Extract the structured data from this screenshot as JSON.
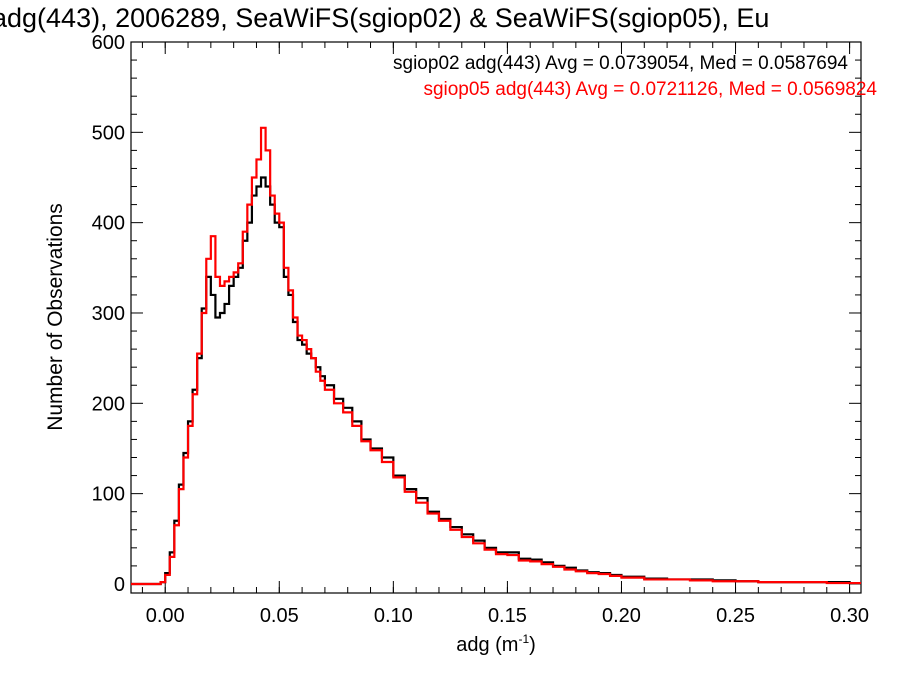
{
  "chart_data": {
    "type": "line",
    "title": "adg(443), 2006289, SeaWiFS(sgiop02) & SeaWiFS(sgiop05), Eu",
    "xlabel": "adg (m",
    "xlabel_sup": "-1",
    "xlabel_end": ")",
    "ylabel": "Number of Observations",
    "xlim": [
      -0.015,
      0.305
    ],
    "ylim": [
      -10,
      600
    ],
    "xticks": [
      0.0,
      0.05,
      0.1,
      0.15,
      0.2,
      0.25,
      0.3
    ],
    "xtick_labels": [
      "0.00",
      "0.05",
      "0.10",
      "0.15",
      "0.20",
      "0.25",
      "0.30"
    ],
    "yticks": [
      0,
      100,
      200,
      300,
      400,
      500,
      600
    ],
    "ytick_labels": [
      "0",
      "100",
      "200",
      "300",
      "400",
      "500",
      "600"
    ],
    "grid": false,
    "legend_position": "top-right",
    "x": [
      -0.015,
      -0.004,
      -0.002,
      0.0,
      0.002,
      0.004,
      0.006,
      0.008,
      0.01,
      0.012,
      0.014,
      0.016,
      0.018,
      0.02,
      0.022,
      0.024,
      0.026,
      0.028,
      0.03,
      0.032,
      0.034,
      0.036,
      0.038,
      0.04,
      0.042,
      0.044,
      0.046,
      0.048,
      0.05,
      0.052,
      0.054,
      0.056,
      0.058,
      0.06,
      0.062,
      0.064,
      0.066,
      0.068,
      0.07,
      0.074,
      0.078,
      0.082,
      0.086,
      0.09,
      0.095,
      0.1,
      0.105,
      0.11,
      0.115,
      0.12,
      0.125,
      0.13,
      0.135,
      0.14,
      0.145,
      0.15,
      0.155,
      0.16,
      0.165,
      0.17,
      0.175,
      0.18,
      0.185,
      0.19,
      0.195,
      0.2,
      0.21,
      0.22,
      0.23,
      0.24,
      0.25,
      0.26,
      0.27,
      0.28,
      0.29,
      0.3,
      0.305
    ],
    "series": [
      {
        "name": "sgiop02",
        "color": "#000000",
        "values": [
          0,
          0,
          2,
          12,
          35,
          70,
          110,
          145,
          180,
          215,
          250,
          305,
          340,
          320,
          295,
          300,
          310,
          330,
          340,
          350,
          380,
          400,
          430,
          440,
          450,
          440,
          420,
          400,
          395,
          340,
          320,
          290,
          270,
          265,
          255,
          250,
          240,
          230,
          220,
          205,
          195,
          180,
          160,
          150,
          140,
          120,
          105,
          95,
          80,
          72,
          63,
          55,
          48,
          40,
          35,
          35,
          28,
          27,
          24,
          20,
          18,
          15,
          13,
          12,
          10,
          8,
          6,
          5,
          5,
          4,
          3,
          2,
          2,
          2,
          2,
          1,
          1
        ]
      },
      {
        "name": "sgiop05",
        "color": "#ff0000",
        "values": [
          0,
          0,
          2,
          10,
          30,
          65,
          105,
          140,
          175,
          210,
          255,
          300,
          360,
          385,
          340,
          330,
          335,
          340,
          345,
          355,
          390,
          420,
          450,
          470,
          505,
          480,
          430,
          410,
          400,
          350,
          325,
          295,
          275,
          270,
          260,
          250,
          235,
          225,
          215,
          200,
          190,
          175,
          158,
          148,
          135,
          118,
          102,
          90,
          78,
          70,
          60,
          52,
          45,
          38,
          33,
          32,
          26,
          25,
          22,
          19,
          16,
          14,
          12,
          11,
          9,
          7,
          5,
          5,
          4,
          3,
          3,
          2,
          2,
          2,
          1,
          1,
          1
        ]
      }
    ],
    "legend": [
      {
        "text": "sgiop02 adg(443) Avg = 0.0739054, Med = 0.0587694",
        "color": "#000000"
      },
      {
        "text": "sgiop05 adg(443) Avg = 0.0721126, Med = 0.0569824",
        "color": "#ff0000"
      }
    ]
  }
}
